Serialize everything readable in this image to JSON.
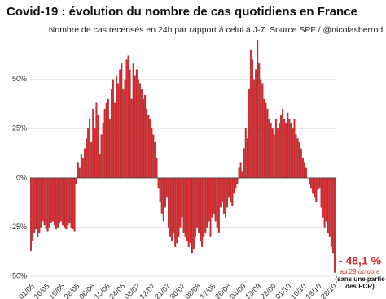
{
  "chart_data": {
    "type": "bar",
    "title": "Covid-19 : évolution du nombre de cas quotidiens en France",
    "subtitle": "Nombre de cas recensés en 24h par rapport à celui à J-7. Source SPF / @nicolasberrod",
    "color": "#d42a2e",
    "grid": true,
    "ylim": [
      -52,
      73
    ],
    "yticks": [
      {
        "value": -50,
        "label": "-50%"
      },
      {
        "value": -25,
        "label": "-25%"
      },
      {
        "value": 0,
        "label": "0%"
      },
      {
        "value": 25,
        "label": "25%"
      },
      {
        "value": 50,
        "label": "50%"
      }
    ],
    "annotation": {
      "label": "- 48,1 %",
      "date": "au 29 octobre",
      "note": "(sans une partie des PCR)"
    },
    "categories": [
      "01/05",
      null,
      null,
      null,
      null,
      null,
      null,
      null,
      null,
      "10/05",
      null,
      null,
      null,
      null,
      null,
      null,
      null,
      null,
      "19/05",
      null,
      null,
      null,
      null,
      null,
      null,
      null,
      null,
      "28/05",
      null,
      null,
      null,
      null,
      null,
      null,
      null,
      null,
      "06/06",
      null,
      null,
      null,
      null,
      null,
      null,
      null,
      null,
      "15/06",
      null,
      null,
      null,
      null,
      null,
      null,
      null,
      null,
      "24/06",
      null,
      null,
      null,
      null,
      null,
      null,
      null,
      null,
      "03/07",
      null,
      null,
      null,
      null,
      null,
      null,
      null,
      null,
      "12/07",
      null,
      null,
      null,
      null,
      null,
      null,
      null,
      null,
      "21/07",
      null,
      null,
      null,
      null,
      null,
      null,
      null,
      null,
      "30/07",
      null,
      null,
      null,
      null,
      null,
      null,
      null,
      null,
      "08/08",
      null,
      null,
      null,
      null,
      null,
      null,
      null,
      null,
      "17/08",
      null,
      null,
      null,
      null,
      null,
      null,
      null,
      null,
      "26/08",
      null,
      null,
      null,
      null,
      null,
      null,
      null,
      null,
      "04/09",
      null,
      null,
      null,
      null,
      null,
      null,
      null,
      null,
      "13/09",
      null,
      null,
      null,
      null,
      null,
      null,
      null,
      null,
      "22/09",
      null,
      null,
      null,
      null,
      null,
      null,
      null,
      null,
      "01/10",
      null,
      null,
      null,
      null,
      null,
      null,
      null,
      null,
      "10/10",
      null,
      null,
      null,
      null,
      null,
      null,
      null,
      null,
      "19/10",
      null,
      null,
      null,
      null,
      null,
      null,
      null,
      null,
      "28/10",
      null
    ],
    "values": [
      -37,
      -32,
      -28,
      -26,
      -30,
      -28,
      -25,
      -22,
      -24,
      -26,
      -27,
      -25,
      -23,
      -22,
      -24,
      -26,
      -25,
      -23,
      -22,
      -24,
      -25,
      -26,
      -24,
      -23,
      -25,
      -26,
      -27,
      -3,
      8,
      5,
      12,
      10,
      15,
      20,
      25,
      30,
      18,
      35,
      25,
      38,
      32,
      12,
      22,
      28,
      35,
      38,
      40,
      30,
      45,
      50,
      38,
      52,
      48,
      55,
      58,
      45,
      50,
      60,
      62,
      55,
      40,
      58,
      52,
      55,
      50,
      48,
      45,
      40,
      42,
      35,
      32,
      30,
      25,
      22,
      18,
      10,
      -5,
      -12,
      -18,
      -22,
      -15,
      -10,
      -25,
      -30,
      -32,
      -28,
      -35,
      -33,
      -30,
      -25,
      -20,
      -28,
      -30,
      -32,
      -35,
      -33,
      -38,
      -36,
      -30,
      -25,
      -28,
      -32,
      -35,
      -30,
      -28,
      -25,
      -22,
      -30,
      -20,
      -18,
      -22,
      -25,
      -28,
      -15,
      -12,
      -18,
      -20,
      -15,
      -10,
      -12,
      -14,
      -8,
      -5,
      -3,
      5,
      8,
      3,
      15,
      25,
      20,
      45,
      65,
      60,
      50,
      55,
      70,
      58,
      50,
      48,
      40,
      38,
      35,
      30,
      28,
      25,
      22,
      30,
      25,
      28,
      32,
      35,
      30,
      28,
      33,
      30,
      28,
      25,
      30,
      22,
      20,
      18,
      15,
      10,
      8,
      5,
      0,
      -3,
      -5,
      -8,
      -10,
      -12,
      -6,
      -5,
      -15,
      -20,
      -25,
      -22,
      -28,
      -30,
      -35,
      -38,
      -48.1
    ]
  }
}
